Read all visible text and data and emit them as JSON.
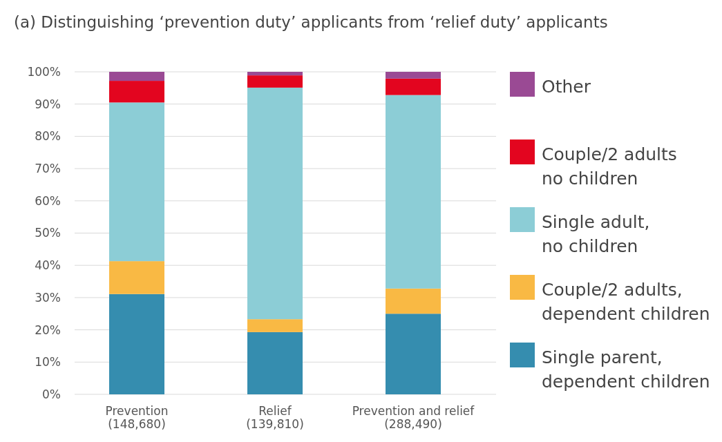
{
  "chart_data": {
    "type": "bar",
    "stacked": true,
    "title": "(a) Distinguishing ‘prevention duty’ applicants from ‘relief duty’ applicants",
    "categories": [
      "Prevention\n(148,680)",
      "Relief\n(139,810)",
      "Prevention and relief\n(288,490)"
    ],
    "series": [
      {
        "name": "Single parent,\ndependent children",
        "color": "#358daf",
        "values": [
          31.1,
          19.3,
          25
        ]
      },
      {
        "name": "Couple/2 adults,\ndependent children",
        "color": "#f9b944",
        "values": [
          10.2,
          4,
          7.8
        ]
      },
      {
        "name": "Single adult,\nno children",
        "color": "#8ccdd6",
        "values": [
          49.2,
          71.8,
          60
        ]
      },
      {
        "name": "Couple/2 adults\nno children",
        "color": "#e3051f",
        "values": [
          6.7,
          3.8,
          5.1
        ]
      },
      {
        "name": "Other",
        "color": "#9a4a94",
        "values": [
          2.8,
          1.1,
          2.1
        ]
      }
    ],
    "ylim": [
      0,
      100
    ],
    "yticks": [
      {
        "value": 0,
        "label": "0%"
      },
      {
        "value": 10,
        "label": "10%"
      },
      {
        "value": 20,
        "label": "20%"
      },
      {
        "value": 30,
        "label": "30%"
      },
      {
        "value": 40,
        "label": "40%"
      },
      {
        "value": 50,
        "label": "50%"
      },
      {
        "value": 60,
        "label": "60%"
      },
      {
        "value": 70,
        "label": "70%"
      },
      {
        "value": 80,
        "label": "80%"
      },
      {
        "value": 90,
        "label": "90%"
      },
      {
        "value": 100,
        "label": "100%"
      }
    ],
    "grid": "y",
    "legend": "right"
  }
}
